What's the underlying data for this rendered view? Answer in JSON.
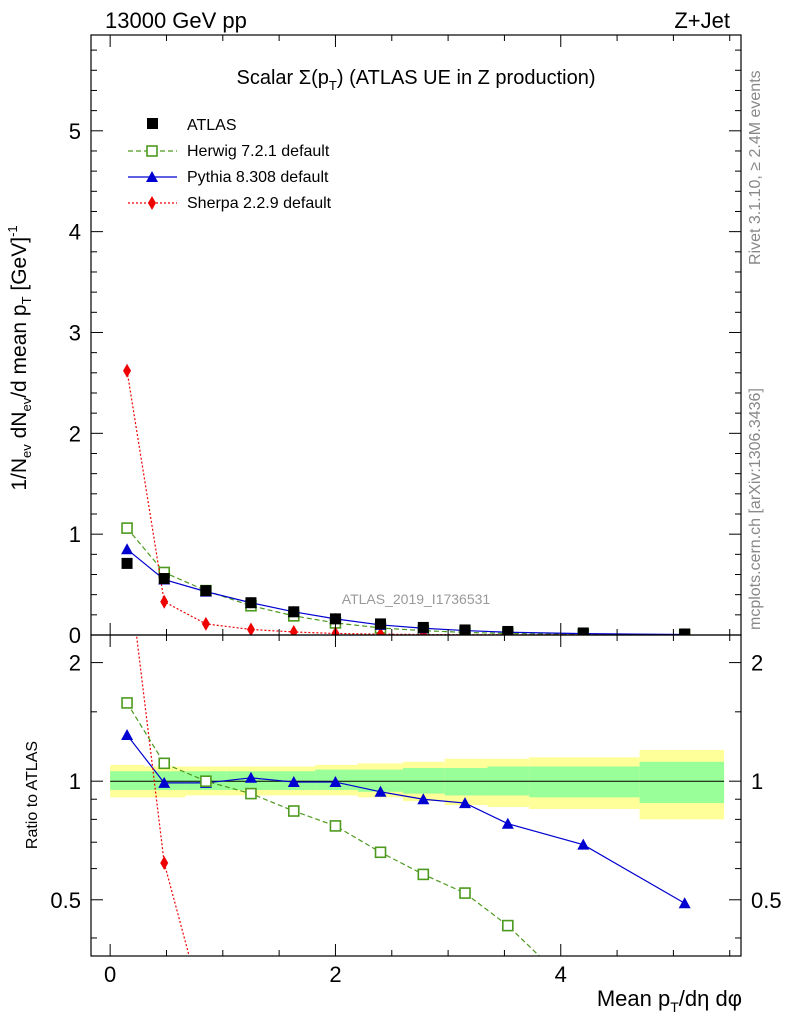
{
  "header": {
    "left": "13000 GeV pp",
    "right": "Z+Jet"
  },
  "side_labels": {
    "top": "Rivet 3.1.10, ≥ 2.4M events",
    "bottom": "mcplots.cern.ch [arXiv:1306.3436]"
  },
  "chart_data": [
    {
      "type": "scatter",
      "panel": "main",
      "title": "Scalar Σ(pT) (ATLAS UE in Z production)",
      "title_parts": {
        "prefix": "Scalar Σ(p",
        "sub": "T",
        "suffix": ") (ATLAS UE in Z production)"
      },
      "ylabel": "1/Nev dNev/d mean pT [GeV]-1",
      "xlabel": "Mean pT/dη dφ",
      "watermark": "ATLAS_2019_I1736531",
      "xlim": [
        -0.17,
        5.6
      ],
      "ylim": [
        0,
        5.95
      ],
      "x_ticks": [
        0,
        2,
        4
      ],
      "y_ticks": [
        0,
        1,
        2,
        3,
        4,
        5
      ],
      "legend_position": "top-left",
      "series": [
        {
          "name": "ATLAS",
          "color": "#000000",
          "marker": "filled-square",
          "line": "none",
          "x": [
            0.15,
            0.48,
            0.85,
            1.25,
            1.63,
            2.0,
            2.4,
            2.78,
            3.15,
            3.53,
            4.2,
            5.1
          ],
          "y": [
            0.71,
            0.56,
            0.44,
            0.32,
            0.23,
            0.16,
            0.11,
            0.075,
            0.05,
            0.035,
            0.02,
            0.01
          ]
        },
        {
          "name": "Herwig 7.2.1 default",
          "color": "#4d9a1e",
          "marker": "open-square",
          "line": "dashed",
          "x": [
            0.15,
            0.48,
            0.85,
            1.25,
            1.63,
            2.0,
            2.4,
            2.78,
            3.15,
            3.53,
            4.2,
            5.1
          ],
          "y": [
            1.06,
            0.62,
            0.44,
            0.29,
            0.19,
            0.12,
            0.07,
            0.043,
            0.026,
            0.015,
            0.006,
            0.002
          ]
        },
        {
          "name": "Pythia 8.308 default",
          "color": "#0000d0",
          "marker": "filled-triangle",
          "line": "solid",
          "x": [
            0.15,
            0.48,
            0.85,
            1.25,
            1.63,
            2.0,
            2.4,
            2.78,
            3.15,
            3.53,
            4.2,
            5.1
          ],
          "y": [
            0.85,
            0.55,
            0.43,
            0.32,
            0.23,
            0.16,
            0.1,
            0.067,
            0.044,
            0.027,
            0.014,
            0.005
          ]
        },
        {
          "name": "Sherpa 2.2.9 default",
          "color": "#ee0000",
          "marker": "filled-diamond",
          "line": "dotted",
          "x": [
            0.15,
            0.48,
            0.85,
            1.25,
            1.63,
            2.0,
            2.4,
            2.78,
            3.15,
            3.53,
            4.2,
            5.1
          ],
          "y": [
            2.62,
            0.33,
            0.11,
            0.055,
            0.03,
            0.015,
            0.008,
            0.005,
            0.003,
            0.002,
            0.001,
            0.0005
          ]
        }
      ]
    },
    {
      "type": "line",
      "panel": "ratio",
      "ylabel": "Ratio to ATLAS",
      "xlim": [
        -0.17,
        5.6
      ],
      "ylim": [
        0.36,
        2.35
      ],
      "y_ticks": [
        0.5,
        1,
        2
      ],
      "y_tick_labels": [
        "0.5",
        "1",
        "2"
      ],
      "x_ticks": [
        0,
        2,
        4
      ],
      "reference_line": 1,
      "bands": {
        "edges": [
          0,
          0.3,
          0.67,
          1.03,
          1.45,
          1.82,
          2.2,
          2.6,
          2.97,
          3.35,
          3.72,
          4.7,
          5.45
        ],
        "outer_yellow": [
          [
            0.91,
            1.1
          ],
          [
            0.91,
            1.09
          ],
          [
            0.92,
            1.09
          ],
          [
            0.92,
            1.09
          ],
          [
            0.92,
            1.09
          ],
          [
            0.92,
            1.1
          ],
          [
            0.91,
            1.11
          ],
          [
            0.89,
            1.12
          ],
          [
            0.87,
            1.14
          ],
          [
            0.86,
            1.14
          ],
          [
            0.85,
            1.15
          ],
          [
            0.8,
            1.2
          ]
        ],
        "inner_green": [
          [
            0.95,
            1.06
          ],
          [
            0.95,
            1.06
          ],
          [
            0.95,
            1.06
          ],
          [
            0.95,
            1.06
          ],
          [
            0.95,
            1.06
          ],
          [
            0.95,
            1.07
          ],
          [
            0.94,
            1.07
          ],
          [
            0.93,
            1.08
          ],
          [
            0.92,
            1.08
          ],
          [
            0.92,
            1.09
          ],
          [
            0.91,
            1.09
          ],
          [
            0.88,
            1.12
          ]
        ]
      },
      "series": [
        {
          "name": "Herwig 7.2.1 default",
          "color": "#4d9a1e",
          "marker": "open-square",
          "line": "dashed",
          "x": [
            0.15,
            0.48,
            0.85,
            1.25,
            1.63,
            2.0,
            2.4,
            2.78,
            3.15,
            3.53,
            3.9
          ],
          "y": [
            1.58,
            1.11,
            1.0,
            0.93,
            0.84,
            0.77,
            0.66,
            0.58,
            0.52,
            0.43,
            0.34
          ]
        },
        {
          "name": "Pythia 8.308 default",
          "color": "#0000d0",
          "marker": "filled-triangle",
          "line": "solid",
          "x": [
            0.15,
            0.48,
            0.85,
            1.25,
            1.63,
            2.0,
            2.4,
            2.78,
            3.15,
            3.53,
            4.2,
            5.1
          ],
          "y": [
            1.31,
            0.99,
            0.99,
            1.02,
            0.995,
            0.995,
            0.94,
            0.9,
            0.88,
            0.78,
            0.69,
            0.49
          ]
        },
        {
          "name": "Sherpa 2.2.9 default",
          "color": "#ee0000",
          "marker": "filled-diamond",
          "line": "dotted",
          "x": [
            0.15,
            0.48,
            0.85
          ],
          "y": [
            3.7,
            0.62,
            0.25
          ]
        }
      ]
    }
  ]
}
